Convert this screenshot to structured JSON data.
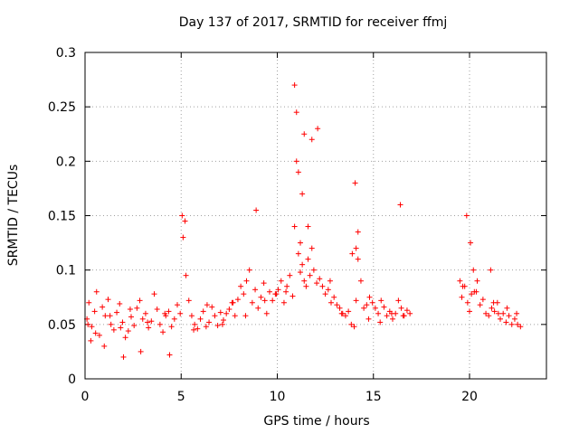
{
  "chart_data": {
    "type": "scatter",
    "title": "Day 137 of 2017, SRMTID for receiver ffmj",
    "xlabel": "GPS time / hours",
    "ylabel": "SRMTID / TECUs",
    "xlim": [
      0,
      24
    ],
    "ylim": [
      0,
      0.3
    ],
    "xticks": [
      0,
      5,
      10,
      15,
      20
    ],
    "xtick_labels": [
      "0",
      "5",
      "10",
      "15",
      "20"
    ],
    "yticks": [
      0,
      0.05,
      0.1,
      0.15,
      0.2,
      0.25,
      0.3
    ],
    "ytick_labels": [
      "0",
      "0.05",
      "0.1",
      "0.15",
      "0.2",
      "0.25",
      "0.3"
    ],
    "grid": true,
    "marker": "+",
    "series": [
      {
        "name": "SRMTID",
        "color": "#ff0000",
        "x": [
          0.1,
          0.2,
          0.35,
          0.5,
          0.6,
          0.75,
          0.9,
          1.05,
          1.2,
          1.35,
          1.5,
          1.65,
          1.8,
          1.95,
          2.1,
          2.25,
          2.4,
          2.55,
          2.7,
          2.85,
          3.0,
          3.15,
          3.3,
          3.45,
          3.6,
          3.75,
          3.9,
          4.05,
          4.2,
          4.35,
          4.5,
          4.65,
          4.8,
          4.95,
          5.1,
          5.25,
          5.4,
          5.55,
          5.7,
          5.85,
          6.0,
          6.15,
          6.3,
          6.45,
          6.6,
          6.75,
          6.9,
          7.05,
          7.2,
          7.35,
          7.5,
          7.65,
          7.8,
          7.95,
          8.1,
          8.25,
          8.4,
          8.55,
          8.7,
          8.85,
          9.0,
          9.15,
          9.3,
          9.45,
          9.6,
          9.75,
          9.9,
          10.05,
          10.2,
          10.35,
          10.5,
          10.65,
          10.8,
          10.9,
          11.0,
          11.1,
          11.2,
          11.3,
          11.4,
          11.5,
          11.6,
          11.7,
          11.8,
          11.9,
          12.05,
          12.2,
          12.35,
          12.5,
          12.65,
          12.8,
          12.95,
          13.1,
          13.25,
          13.4,
          13.55,
          13.7,
          13.85,
          14.0,
          14.1,
          14.2,
          14.35,
          14.5,
          14.65,
          14.8,
          14.95,
          15.1,
          15.25,
          15.4,
          15.55,
          15.7,
          15.85,
          16.0,
          16.15,
          16.3,
          16.45,
          16.6,
          16.75,
          16.9,
          19.5,
          19.6,
          19.75,
          19.9,
          20.0,
          20.1,
          20.25,
          20.4,
          20.55,
          20.7,
          20.85,
          21.0,
          21.15,
          21.3,
          21.45,
          21.6,
          21.75,
          21.9,
          22.05,
          22.2,
          22.35,
          22.5,
          22.65,
          0.3,
          1.0,
          2.0,
          2.9,
          4.4,
          5.05,
          5.2,
          8.9,
          10.9,
          11.0,
          11.1,
          11.3,
          11.4,
          11.2,
          11.6,
          11.8,
          12.1,
          14.05,
          14.1,
          14.2,
          13.9,
          16.4,
          19.85,
          20.05,
          20.2,
          21.1,
          21.5,
          0.15,
          0.55,
          1.3,
          1.85,
          2.35,
          3.25,
          4.15,
          5.65,
          6.35,
          7.15,
          7.7,
          8.35,
          9.35,
          9.95,
          10.45,
          12.75,
          13.35,
          14.75,
          15.35,
          15.95,
          16.55,
          19.65,
          20.35,
          21.25,
          21.95,
          22.45
        ],
        "y": [
          0.055,
          0.07,
          0.048,
          0.062,
          0.08,
          0.04,
          0.066,
          0.058,
          0.073,
          0.05,
          0.045,
          0.061,
          0.069,
          0.052,
          0.038,
          0.044,
          0.057,
          0.049,
          0.065,
          0.072,
          0.055,
          0.06,
          0.047,
          0.053,
          0.078,
          0.064,
          0.05,
          0.043,
          0.058,
          0.062,
          0.048,
          0.055,
          0.068,
          0.06,
          0.13,
          0.095,
          0.072,
          0.058,
          0.05,
          0.046,
          0.055,
          0.062,
          0.048,
          0.052,
          0.066,
          0.058,
          0.049,
          0.061,
          0.054,
          0.06,
          0.064,
          0.07,
          0.058,
          0.073,
          0.085,
          0.078,
          0.09,
          0.1,
          0.07,
          0.082,
          0.065,
          0.075,
          0.088,
          0.06,
          0.08,
          0.072,
          0.078,
          0.082,
          0.09,
          0.07,
          0.085,
          0.095,
          0.076,
          0.14,
          0.2,
          0.115,
          0.098,
          0.105,
          0.09,
          0.085,
          0.11,
          0.095,
          0.12,
          0.1,
          0.088,
          0.092,
          0.085,
          0.078,
          0.082,
          0.07,
          0.075,
          0.068,
          0.065,
          0.06,
          0.058,
          0.062,
          0.05,
          0.048,
          0.072,
          0.11,
          0.09,
          0.065,
          0.068,
          0.075,
          0.07,
          0.065,
          0.06,
          0.072,
          0.066,
          0.058,
          0.062,
          0.055,
          0.06,
          0.072,
          0.065,
          0.058,
          0.063,
          0.06,
          0.09,
          0.075,
          0.085,
          0.07,
          0.062,
          0.078,
          0.08,
          0.09,
          0.068,
          0.073,
          0.06,
          0.058,
          0.065,
          0.062,
          0.07,
          0.055,
          0.06,
          0.052,
          0.058,
          0.05,
          0.055,
          0.05,
          0.048,
          0.035,
          0.03,
          0.02,
          0.025,
          0.022,
          0.15,
          0.145,
          0.155,
          0.27,
          0.245,
          0.19,
          0.17,
          0.225,
          0.125,
          0.14,
          0.22,
          0.23,
          0.18,
          0.12,
          0.135,
          0.115,
          0.16,
          0.15,
          0.125,
          0.1,
          0.1,
          0.06,
          0.05,
          0.042,
          0.058,
          0.047,
          0.064,
          0.052,
          0.06,
          0.045,
          0.068,
          0.05,
          0.07,
          0.058,
          0.072,
          0.078,
          0.08,
          0.09,
          0.06,
          0.055,
          0.052,
          0.06,
          0.058,
          0.085,
          0.08,
          0.07,
          0.065,
          0.06
        ]
      }
    ]
  }
}
